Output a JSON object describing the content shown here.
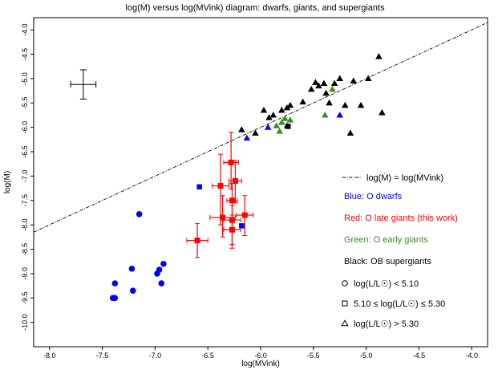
{
  "chart_data": {
    "type": "scatter",
    "title": "log(Ṁ) versus log(ṀVink) diagram: dwarfs, giants, and supergiants",
    "xlabel": "log(ṀVink)",
    "ylabel": "log(Ṁ)",
    "xlim": [
      -8.15,
      -3.85
    ],
    "ylim": [
      -10.5,
      -3.75
    ],
    "xticks": [
      "-8.0",
      "-7.5",
      "-7.0",
      "-6.5",
      "-6.0",
      "-5.5",
      "-5.0",
      "-4.5",
      "-4.0"
    ],
    "yticks": [
      "-4.0",
      "-4.5",
      "-5.0",
      "-5.5",
      "-6.0",
      "-6.5",
      "-7.0",
      "-7.5",
      "-8.0",
      "-8.5",
      "-9.0",
      "-9.5",
      "-10.0"
    ],
    "identity_line": {
      "label": "log(Ṁ) = log(ṀVink)",
      "style": "dash-dot"
    },
    "typical_error": {
      "x": -7.68,
      "y": -5.12,
      "xerr": 0.12,
      "yerr": 0.3
    },
    "series": [
      {
        "name": "Blue: O dwarfs",
        "color": "#0000ff",
        "points": [
          {
            "x": -7.4,
            "y": -9.5,
            "marker": "circle"
          },
          {
            "x": -7.38,
            "y": -9.5,
            "marker": "circle"
          },
          {
            "x": -7.38,
            "y": -9.2,
            "marker": "circle"
          },
          {
            "x": -7.22,
            "y": -8.9,
            "marker": "circle"
          },
          {
            "x": -7.21,
            "y": -9.35,
            "marker": "circle"
          },
          {
            "x": -7.15,
            "y": -7.78,
            "marker": "circle"
          },
          {
            "x": -6.98,
            "y": -9.0,
            "marker": "circle"
          },
          {
            "x": -6.96,
            "y": -8.92,
            "marker": "circle"
          },
          {
            "x": -6.94,
            "y": -9.2,
            "marker": "circle"
          },
          {
            "x": -6.92,
            "y": -8.8,
            "marker": "circle"
          },
          {
            "x": -6.58,
            "y": -7.22,
            "marker": "square"
          },
          {
            "x": -6.18,
            "y": -8.02,
            "marker": "square"
          },
          {
            "x": -6.13,
            "y": -6.22,
            "marker": "triangle"
          },
          {
            "x": -5.93,
            "y": -6.0,
            "marker": "triangle"
          },
          {
            "x": -5.75,
            "y": -5.97,
            "marker": "triangle"
          },
          {
            "x": -5.25,
            "y": -5.75,
            "marker": "triangle"
          }
        ]
      },
      {
        "name": "Red: O late giants (this work)",
        "color": "#ff0000",
        "points": [
          {
            "x": -6.6,
            "y": -8.32,
            "xerr": 0.1,
            "yerr_up": 0.35,
            "yerr_down": 0.35,
            "marker": "square"
          },
          {
            "x": -6.38,
            "y": -7.2,
            "xerr": 0.08,
            "yerr_up": 0.65,
            "yerr_down": 0.8,
            "marker": "square"
          },
          {
            "x": -6.36,
            "y": -7.85,
            "xerr": 0.12,
            "yerr_up": 0.45,
            "yerr_down": 0.4,
            "marker": "square"
          },
          {
            "x": -6.28,
            "y": -6.72,
            "xerr": 0.07,
            "yerr_up": 0.62,
            "yerr_down": 0.55,
            "marker": "square"
          },
          {
            "x": -6.27,
            "y": -7.5,
            "xerr": 0.05,
            "yerr_up": 0.35,
            "yerr_down": 0.45,
            "marker": "square"
          },
          {
            "x": -6.27,
            "y": -7.9,
            "xerr": 0.08,
            "yerr_up": 0.3,
            "yerr_down": 0.5,
            "marker": "square"
          },
          {
            "x": -6.27,
            "y": -8.1,
            "xerr": 0.08,
            "yerr_up": 0.3,
            "yerr_down": 0.38,
            "marker": "square"
          },
          {
            "x": -6.24,
            "y": -7.1,
            "xerr": 0.06,
            "yerr_up": 0.42,
            "yerr_down": 0.45,
            "marker": "square"
          },
          {
            "x": -6.15,
            "y": -7.8,
            "xerr": 0.08,
            "yerr_up": 0.4,
            "yerr_down": 0.42,
            "marker": "square"
          }
        ]
      },
      {
        "name": "Green: O early giants",
        "color": "#3a8f1a",
        "points": [
          {
            "x": -5.85,
            "y": -5.97,
            "marker": "triangle"
          },
          {
            "x": -5.82,
            "y": -6.08,
            "marker": "triangle"
          },
          {
            "x": -5.8,
            "y": -5.9,
            "marker": "triangle"
          },
          {
            "x": -5.77,
            "y": -5.82,
            "marker": "triangle"
          },
          {
            "x": -5.72,
            "y": -5.85,
            "marker": "triangle"
          },
          {
            "x": -5.39,
            "y": -5.75,
            "marker": "triangle"
          },
          {
            "x": -5.32,
            "y": -5.22,
            "marker": "triangle"
          }
        ]
      },
      {
        "name": "Black: OB supergiants",
        "color": "#000000",
        "points": [
          {
            "x": -6.18,
            "y": -6.05,
            "marker": "triangle"
          },
          {
            "x": -6.05,
            "y": -6.12,
            "marker": "triangle"
          },
          {
            "x": -5.97,
            "y": -5.65,
            "marker": "triangle"
          },
          {
            "x": -5.92,
            "y": -5.8,
            "marker": "triangle"
          },
          {
            "x": -5.88,
            "y": -5.75,
            "marker": "triangle"
          },
          {
            "x": -5.8,
            "y": -5.65,
            "marker": "triangle"
          },
          {
            "x": -5.75,
            "y": -5.6,
            "marker": "triangle"
          },
          {
            "x": -5.74,
            "y": -5.98,
            "marker": "square"
          },
          {
            "x": -5.72,
            "y": -5.55,
            "marker": "triangle"
          },
          {
            "x": -5.6,
            "y": -5.48,
            "marker": "triangle"
          },
          {
            "x": -5.52,
            "y": -5.22,
            "marker": "triangle"
          },
          {
            "x": -5.48,
            "y": -5.08,
            "marker": "triangle"
          },
          {
            "x": -5.45,
            "y": -5.15,
            "marker": "triangle"
          },
          {
            "x": -5.4,
            "y": -5.1,
            "marker": "triangle"
          },
          {
            "x": -5.38,
            "y": -5.3,
            "marker": "triangle"
          },
          {
            "x": -5.35,
            "y": -5.5,
            "marker": "triangle"
          },
          {
            "x": -5.3,
            "y": -5.1,
            "marker": "triangle"
          },
          {
            "x": -5.25,
            "y": -5.0,
            "marker": "triangle"
          },
          {
            "x": -5.2,
            "y": -5.55,
            "marker": "triangle"
          },
          {
            "x": -5.15,
            "y": -6.12,
            "marker": "triangle"
          },
          {
            "x": -5.12,
            "y": -5.05,
            "marker": "triangle"
          },
          {
            "x": -5.05,
            "y": -5.55,
            "marker": "triangle"
          },
          {
            "x": -4.98,
            "y": -5.0,
            "marker": "triangle"
          },
          {
            "x": -4.88,
            "y": -4.55,
            "marker": "triangle"
          },
          {
            "x": -4.85,
            "y": -5.7,
            "marker": "triangle"
          }
        ]
      }
    ],
    "legend": {
      "placement": "right",
      "line_entry": "log(Ṁ) = log(ṀVink)",
      "color_entries": [
        {
          "text": "Blue: O dwarfs",
          "color": "#0000ff"
        },
        {
          "text": "Red: O late giants (this work)",
          "color": "#ff0000"
        },
        {
          "text": "Green: O early giants",
          "color": "#3a8f1a"
        },
        {
          "text": "Black: OB supergiants",
          "color": "#000000"
        }
      ],
      "marker_entries": [
        {
          "marker": "circle",
          "text": "log(L/L☉) < 5.10"
        },
        {
          "marker": "square",
          "text": "5.10 ≤ log(L/L☉) ≤ 5.30"
        },
        {
          "marker": "triangle",
          "text": "log(L/L☉) > 5.30"
        }
      ]
    }
  }
}
